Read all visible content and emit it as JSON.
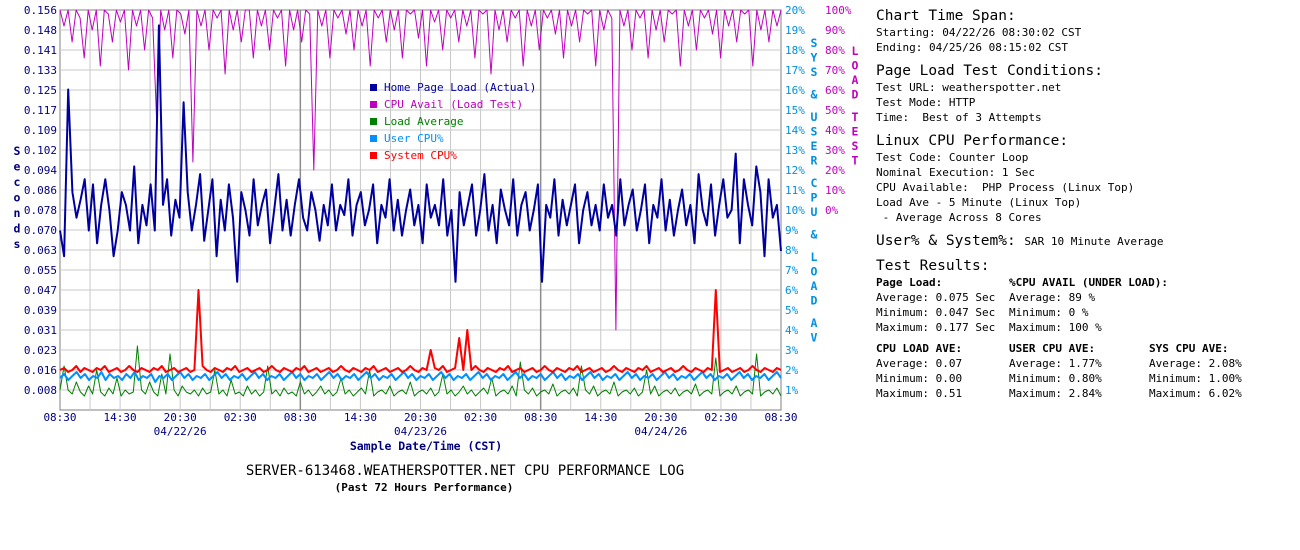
{
  "chart_data": {
    "type": "line",
    "title": "SERVER-613468.WEATHERSPOTTER.NET CPU PERFORMANCE LOG",
    "subtitle": "(Past 72 Hours Performance)",
    "xlabel": "Sample Date/Time (CST)",
    "ylabel_left": "Seconds",
    "ylabel_right_inner": "SYS & USER CPU & LOAD AV",
    "ylabel_right_outer": "LOAD TEST",
    "x_tick_labels": [
      "08:30",
      "14:30",
      "20:30",
      "02:30",
      "08:30",
      "14:30",
      "20:30",
      "02:30",
      "08:30",
      "14:30",
      "20:30",
      "02:30",
      "08:30"
    ],
    "x_date_labels": [
      "04/22/26",
      "04/23/26",
      "04/24/26"
    ],
    "y_left_ticks": [
      "0.156",
      "0.148",
      "0.141",
      "0.133",
      "0.125",
      "0.117",
      "0.109",
      "0.102",
      "0.094",
      "0.086",
      "0.078",
      "0.070",
      "0.063",
      "0.055",
      "0.047",
      "0.039",
      "0.031",
      "0.023",
      "0.016",
      "0.008"
    ],
    "y_right_inner_ticks": [
      "20%",
      "19%",
      "18%",
      "17%",
      "16%",
      "15%",
      "14%",
      "13%",
      "12%",
      "11%",
      "10%",
      "9%",
      "8%",
      "7%",
      "6%",
      "5%",
      "4%",
      "3%",
      "2%",
      "1%"
    ],
    "y_right_outer_ticks": [
      "100%",
      "90%",
      "80%",
      "70%",
      "60%",
      "50%",
      "40%",
      "30%",
      "20%",
      "10%",
      "0%"
    ],
    "ylim_left": [
      0,
      0.156
    ],
    "ylim_right_inner": [
      0,
      20
    ],
    "ylim_right_outer": [
      0,
      100
    ],
    "x_range_hours": [
      0,
      72
    ],
    "grid": true,
    "legend_position": "center",
    "series": [
      {
        "name": "Home Page Load (Actual)",
        "axis": "left",
        "color": "#0000a0",
        "values": [
          0.07,
          0.06,
          0.125,
          0.085,
          0.075,
          0.082,
          0.09,
          0.07,
          0.088,
          0.065,
          0.08,
          0.09,
          0.078,
          0.06,
          0.07,
          0.085,
          0.08,
          0.07,
          0.095,
          0.065,
          0.08,
          0.072,
          0.088,
          0.07,
          0.15,
          0.08,
          0.09,
          0.068,
          0.082,
          0.075,
          0.12,
          0.085,
          0.07,
          0.08,
          0.092,
          0.066,
          0.078,
          0.09,
          0.06,
          0.082,
          0.07,
          0.088,
          0.075,
          0.05,
          0.085,
          0.078,
          0.068,
          0.09,
          0.072,
          0.08,
          0.086,
          0.065,
          0.078,
          0.092,
          0.07,
          0.082,
          0.068,
          0.08,
          0.09,
          0.075,
          0.07,
          0.085,
          0.078,
          0.066,
          0.08,
          0.072,
          0.088,
          0.07,
          0.08,
          0.076,
          0.09,
          0.068,
          0.08,
          0.085,
          0.072,
          0.078,
          0.088,
          0.065,
          0.08,
          0.075,
          0.09,
          0.07,
          0.082,
          0.068,
          0.078,
          0.086,
          0.072,
          0.08,
          0.065,
          0.088,
          0.075,
          0.08,
          0.072,
          0.09,
          0.068,
          0.078,
          0.05,
          0.085,
          0.072,
          0.08,
          0.088,
          0.068,
          0.078,
          0.092,
          0.07,
          0.08,
          0.065,
          0.086,
          0.078,
          0.072,
          0.09,
          0.068,
          0.08,
          0.085,
          0.07,
          0.078,
          0.088,
          0.05,
          0.08,
          0.075,
          0.09,
          0.068,
          0.082,
          0.072,
          0.08,
          0.088,
          0.065,
          0.078,
          0.085,
          0.072,
          0.08,
          0.07,
          0.088,
          0.075,
          0.08,
          0.068,
          0.09,
          0.072,
          0.08,
          0.086,
          0.07,
          0.078,
          0.088,
          0.065,
          0.08,
          0.075,
          0.09,
          0.07,
          0.082,
          0.068,
          0.078,
          0.086,
          0.072,
          0.08,
          0.065,
          0.092,
          0.078,
          0.072,
          0.088,
          0.068,
          0.08,
          0.09,
          0.075,
          0.078,
          0.1,
          0.065,
          0.09,
          0.08,
          0.072,
          0.095,
          0.085,
          0.06,
          0.09,
          0.075,
          0.08,
          0.062
        ]
      },
      {
        "name": "CPU Avail (Load Test)",
        "axis": "right_outer",
        "color": "#c000c0",
        "values": [
          100,
          96,
          100,
          92,
          100,
          98,
          88,
          100,
          95,
          100,
          86,
          100,
          99,
          92,
          100,
          97,
          100,
          85,
          100,
          96,
          100,
          90,
          100,
          98,
          72,
          100,
          95,
          100,
          88,
          100,
          99,
          94,
          100,
          62,
          100,
          96,
          100,
          90,
          100,
          98,
          100,
          84,
          100,
          95,
          100,
          92,
          100,
          100,
          88,
          100,
          96,
          100,
          90,
          100,
          98,
          100,
          86,
          100,
          95,
          100,
          92,
          100,
          99,
          60,
          100,
          96,
          100,
          88,
          100,
          98,
          100,
          94,
          100,
          90,
          100,
          96,
          100,
          86,
          100,
          98,
          100,
          92,
          100,
          95,
          100,
          88,
          100,
          99,
          100,
          93,
          100,
          86,
          100,
          97,
          100,
          90,
          100,
          98,
          100,
          92,
          100,
          96,
          100,
          88,
          100,
          99,
          100,
          84,
          100,
          95,
          100,
          92,
          100,
          98,
          100,
          86,
          100,
          96,
          100,
          90,
          100,
          98,
          100,
          94,
          100,
          88,
          100,
          96,
          100,
          92,
          100,
          99,
          100,
          86,
          100,
          95,
          100,
          98,
          20,
          100,
          96,
          100,
          90,
          100,
          98,
          100,
          88,
          100,
          95,
          100,
          92,
          100,
          99,
          100,
          86,
          100,
          96,
          100,
          90,
          100,
          98,
          100,
          94,
          100,
          88,
          100,
          96,
          100,
          92,
          100,
          99,
          100,
          86,
          100,
          95,
          100,
          92,
          100,
          96,
          100
        ]
      },
      {
        "name": "Load Average",
        "axis": "right_inner",
        "color": "#008000",
        "values": [
          1.0,
          2.2,
          1.0,
          0.8,
          1.4,
          0.9,
          0.7,
          1.2,
          0.8,
          2.0,
          0.9,
          0.7,
          1.1,
          0.8,
          1.6,
          0.7,
          1.0,
          0.8,
          0.9,
          3.2,
          1.0,
          0.8,
          1.4,
          0.9,
          0.7,
          1.8,
          0.8,
          2.8,
          1.0,
          0.7,
          1.2,
          0.9,
          0.8,
          1.0,
          0.7,
          1.1,
          0.8,
          0.9,
          2.0,
          0.8,
          1.0,
          0.7,
          1.5,
          0.8,
          0.9,
          0.7,
          1.2,
          0.8,
          1.0,
          0.7,
          0.9,
          2.2,
          0.8,
          1.0,
          0.7,
          1.1,
          0.8,
          0.9,
          0.7,
          1.4,
          0.8,
          1.0,
          0.7,
          0.9,
          1.2,
          0.8,
          1.0,
          0.7,
          0.9,
          1.6,
          0.8,
          1.0,
          0.7,
          0.9,
          1.1,
          0.8,
          2.0,
          0.7,
          0.9,
          1.0,
          0.8,
          1.2,
          0.7,
          0.9,
          1.0,
          0.8,
          1.4,
          0.7,
          0.9,
          1.0,
          0.8,
          1.1,
          0.7,
          0.9,
          1.8,
          0.8,
          1.0,
          0.7,
          0.9,
          1.2,
          0.8,
          1.0,
          0.7,
          0.9,
          1.1,
          0.8,
          1.6,
          0.7,
          0.9,
          1.0,
          0.8,
          1.2,
          0.7,
          2.4,
          1.0,
          0.8,
          1.1,
          0.7,
          0.9,
          1.0,
          0.8,
          1.3,
          0.7,
          0.9,
          1.0,
          0.8,
          1.1,
          0.7,
          2.2,
          1.0,
          0.8,
          1.2,
          0.7,
          0.9,
          1.0,
          0.8,
          1.4,
          0.7,
          0.9,
          1.0,
          0.8,
          1.1,
          0.7,
          0.9,
          2.0,
          0.8,
          1.2,
          0.7,
          0.9,
          1.0,
          0.8,
          1.1,
          0.7,
          0.9,
          1.0,
          0.8,
          1.3,
          0.7,
          0.9,
          1.0,
          0.8,
          2.6,
          0.7,
          0.9,
          1.0,
          0.8,
          1.2,
          0.7,
          0.9,
          1.0,
          0.8,
          2.8,
          0.7,
          0.9,
          1.0,
          0.8,
          1.1,
          0.7
        ]
      },
      {
        "name": "User CPU%",
        "axis": "right_inner",
        "color": "#0090ff",
        "values": [
          1.6,
          1.8,
          1.5,
          1.7,
          1.9,
          1.6,
          1.8,
          1.5,
          1.7,
          1.6,
          1.9,
          1.5,
          1.8,
          1.6,
          1.7,
          1.5,
          1.8,
          1.6,
          1.9,
          1.5,
          1.7,
          1.6,
          1.8,
          1.4,
          1.7,
          1.6,
          1.8,
          1.5,
          1.7,
          1.9,
          1.6,
          1.8,
          1.5,
          1.7,
          1.6,
          1.8,
          1.5,
          1.7,
          1.9,
          1.6,
          1.8,
          1.5,
          1.7,
          1.6,
          1.8,
          1.5,
          1.7,
          1.9,
          1.6,
          1.8,
          1.5,
          1.7,
          1.6,
          1.8,
          1.5,
          1.7,
          1.9,
          1.6,
          1.8,
          1.5,
          1.7,
          1.6,
          1.8,
          1.5,
          1.7,
          1.9,
          1.6,
          1.8,
          1.5,
          1.7,
          1.6,
          1.8,
          1.5,
          1.7,
          1.9,
          1.6,
          1.8,
          1.5,
          1.7,
          1.6,
          1.8,
          1.5,
          1.7,
          1.9,
          1.6,
          1.8,
          1.5,
          1.7,
          1.6,
          1.8,
          1.5,
          1.7,
          1.9,
          1.6,
          1.8,
          1.5,
          1.7,
          1.6,
          1.8,
          1.5,
          1.7,
          1.9,
          1.6,
          1.8,
          1.5,
          1.7,
          1.6,
          1.8,
          1.5,
          1.7,
          1.9,
          1.6,
          1.8,
          1.5,
          1.7,
          1.6,
          1.8,
          1.5,
          1.7,
          1.9,
          1.6,
          1.8,
          1.5,
          1.7,
          1.6,
          1.8,
          1.5,
          1.7,
          1.9,
          1.6,
          1.8,
          1.5,
          1.7,
          1.6,
          1.8,
          1.5,
          1.7,
          1.9,
          1.6,
          1.8,
          1.5,
          1.7,
          1.6,
          1.8,
          1.5,
          1.7,
          1.9,
          1.6,
          1.8,
          1.5,
          1.7,
          1.6,
          1.8,
          1.5,
          1.7,
          1.9,
          1.6,
          1.8,
          1.5,
          1.7,
          1.6,
          1.8,
          1.5,
          1.7,
          1.9,
          1.6,
          1.8,
          1.5,
          1.7,
          1.6,
          1.8,
          1.5,
          1.7,
          1.9,
          1.6
        ]
      },
      {
        "name": "System CPU%",
        "axis": "right_inner",
        "color": "#ff0000",
        "values": [
          2.0,
          2.1,
          1.9,
          2.0,
          2.2,
          1.9,
          2.1,
          2.0,
          1.9,
          2.1,
          2.0,
          2.2,
          1.9,
          2.0,
          2.1,
          1.9,
          2.0,
          2.2,
          2.0,
          1.9,
          2.1,
          2.0,
          1.9,
          2.1,
          2.0,
          2.2,
          1.9,
          2.0,
          2.1,
          1.9,
          2.0,
          2.1,
          1.9,
          2.0,
          6.0,
          2.2,
          2.0,
          1.9,
          2.1,
          2.0,
          1.9,
          2.1,
          2.0,
          2.2,
          1.9,
          2.0,
          2.1,
          1.9,
          2.0,
          2.1,
          1.9,
          2.0,
          2.2,
          2.0,
          1.9,
          2.1,
          2.0,
          1.9,
          2.1,
          2.0,
          2.2,
          1.9,
          2.0,
          2.1,
          1.9,
          2.0,
          2.1,
          1.9,
          2.0,
          2.2,
          2.0,
          1.9,
          2.1,
          2.0,
          1.9,
          2.1,
          2.0,
          2.2,
          1.9,
          2.0,
          2.1,
          1.9,
          2.0,
          2.1,
          1.9,
          2.0,
          2.2,
          2.0,
          1.9,
          2.1,
          2.0,
          3.0,
          2.1,
          2.0,
          2.2,
          1.9,
          2.0,
          2.1,
          3.6,
          2.0,
          4.0,
          2.0,
          2.2,
          2.0,
          1.9,
          2.1,
          2.0,
          1.9,
          2.1,
          2.0,
          2.2,
          1.9,
          2.0,
          2.1,
          1.9,
          2.0,
          2.1,
          1.9,
          2.0,
          2.2,
          2.0,
          1.9,
          2.1,
          2.0,
          1.9,
          2.1,
          2.0,
          2.2,
          1.9,
          2.0,
          2.1,
          1.9,
          2.0,
          2.1,
          1.9,
          2.0,
          2.2,
          2.0,
          1.9,
          2.1,
          2.0,
          1.9,
          2.1,
          2.0,
          2.2,
          1.9,
          2.0,
          2.1,
          1.9,
          2.0,
          2.1,
          1.9,
          2.0,
          2.2,
          2.0,
          1.9,
          2.1,
          2.0,
          1.9,
          2.1,
          2.0,
          6.0,
          1.9,
          2.0,
          2.1,
          1.9,
          2.0,
          2.1,
          1.9,
          2.0,
          2.2,
          2.0,
          1.9,
          2.1,
          2.0,
          1.9,
          2.1,
          2.0
        ]
      }
    ]
  },
  "info": {
    "span_heading": "Chart Time Span:",
    "span_start": "Starting: 04/22/26 08:30:02 CST",
    "span_end": "Ending: 04/25/26 08:15:02 CST",
    "conditions_heading": "Page Load Test Conditions:",
    "test_url": "Test URL: weatherspotter.net",
    "test_mode": "Test Mode: HTTP",
    "test_time": "Time:  Best of 3 Attempts",
    "linux_heading": "Linux CPU Performance:",
    "test_code": "Test Code: Counter Loop",
    "nominal": "Nominal Execution: 1 Sec",
    "cpu_available": "CPU Available:  PHP Process (Linux Top)",
    "load_ave": "Load Ave - 5 Minute (Linux Top)",
    "load_ave_note": " - Average Across 8 Cores",
    "usersys_heading": "User% & System%:",
    "usersys_note": "SAR 10 Minute Average",
    "results_heading": "Test Results:",
    "page_load_head": "Page Load:",
    "page_load_avg": "Average: 0.075 Sec",
    "page_load_min": "Minimum: 0.047 Sec",
    "page_load_max": "Maximum: 0.177 Sec",
    "cpu_avail_head": "%CPU AVAIL (UNDER LOAD):",
    "cpu_avail_avg": "Average: 89 %",
    "cpu_avail_min": "Minimum: 0 %",
    "cpu_avail_max": "Maximum: 100 %",
    "cpu_load_head": "CPU LOAD AVE:",
    "cpu_load_avg": "Average: 0.07",
    "cpu_load_min": "Minimum: 0.00",
    "cpu_load_max": "Maximum: 0.51",
    "user_cpu_head": "USER CPU AVE:",
    "user_cpu_avg": "Average: 1.77%",
    "user_cpu_min": "Minimum: 0.80%",
    "user_cpu_max": "Maximum: 2.84%",
    "sys_cpu_head": "SYS CPU AVE:",
    "sys_cpu_avg": "Average: 2.08%",
    "sys_cpu_min": "Minimum: 1.00%",
    "sys_cpu_max": "Maximum: 6.02%"
  }
}
